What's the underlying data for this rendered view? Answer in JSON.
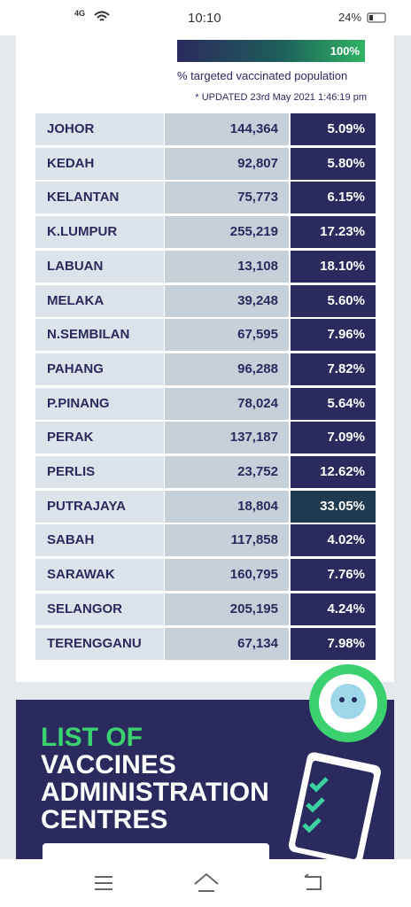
{
  "status_bar": {
    "network": "4G",
    "time": "10:10",
    "battery": "24%"
  },
  "legend": {
    "bar_label": "100%",
    "caption": "% targeted vaccinated population",
    "updated": "* UPDATED 23rd May 2021 1:46:19 pm"
  },
  "table": {
    "rows": [
      [
        "JOHOR",
        "144,364",
        "5.09%"
      ],
      [
        "KEDAH",
        "92,807",
        "5.80%"
      ],
      [
        "KELANTAN",
        "75,773",
        "6.15%"
      ],
      [
        "K.LUMPUR",
        "255,219",
        "17.23%"
      ],
      [
        "LABUAN",
        "13,108",
        "18.10%"
      ],
      [
        "MELAKA",
        "39,248",
        "5.60%"
      ],
      [
        "N.SEMBILAN",
        "67,595",
        "7.96%"
      ],
      [
        "PAHANG",
        "96,288",
        "7.82%"
      ],
      [
        "P.PINANG",
        "78,024",
        "5.64%"
      ],
      [
        "PERAK",
        "137,187",
        "7.09%"
      ],
      [
        "PERLIS",
        "23,752",
        "12.62%"
      ],
      [
        "PUTRAJAYA",
        "18,804",
        "33.05%"
      ],
      [
        "SABAH",
        "117,858",
        "4.02%"
      ],
      [
        "SARAWAK",
        "160,795",
        "7.76%"
      ],
      [
        "SELANGOR",
        "205,195",
        "4.24%"
      ],
      [
        "TERENGGANU",
        "67,134",
        "7.98%"
      ]
    ]
  },
  "banner": {
    "line1": "LIST OF",
    "line2": "VACCINES",
    "line3": "ADMINISTRATION",
    "line4": "CENTRES"
  }
}
